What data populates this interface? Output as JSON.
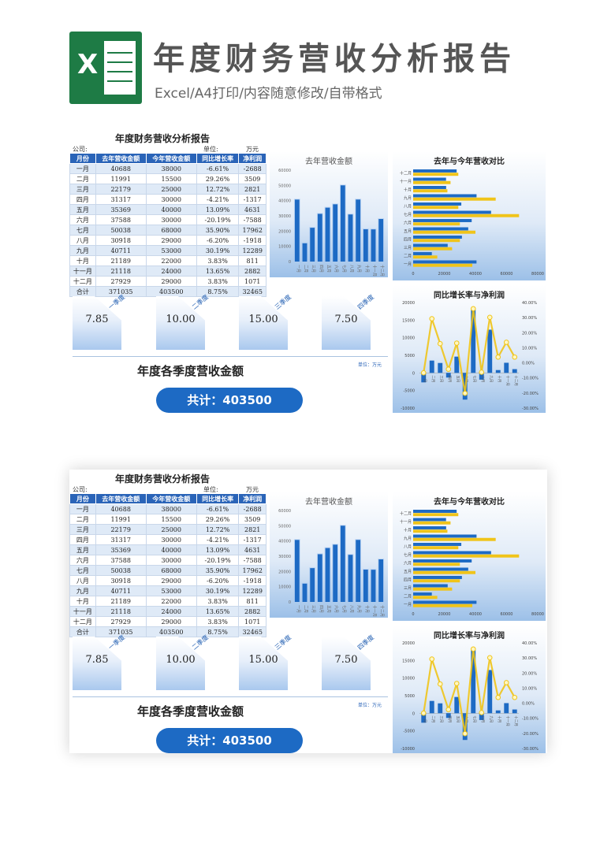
{
  "header": {
    "title": "年度财务营收分析报告",
    "subtitle": "Excel/A4打印/内容随意修改/自带格式",
    "logo_letter": "X"
  },
  "report": {
    "title": "年度财务营收分析报告",
    "company_label": "公司:",
    "unit_label": "单位:",
    "unit_value": "万元",
    "columns": [
      "月份",
      "去年营收金额",
      "今年营收金额",
      "同比增长率",
      "净利润"
    ],
    "rows": [
      [
        "一月",
        "40688",
        "38000",
        "-6.61%",
        "-2688"
      ],
      [
        "二月",
        "11991",
        "15500",
        "29.26%",
        "3509"
      ],
      [
        "三月",
        "22179",
        "25000",
        "12.72%",
        "2821"
      ],
      [
        "四月",
        "31317",
        "30000",
        "-4.21%",
        "-1317"
      ],
      [
        "五月",
        "35369",
        "40000",
        "13.09%",
        "4631"
      ],
      [
        "六月",
        "37588",
        "30000",
        "-20.19%",
        "-7588"
      ],
      [
        "七月",
        "50038",
        "68000",
        "35.90%",
        "17962"
      ],
      [
        "八月",
        "30918",
        "29000",
        "-6.20%",
        "-1918"
      ],
      [
        "九月",
        "40711",
        "53000",
        "30.19%",
        "12289"
      ],
      [
        "十月",
        "21189",
        "22000",
        "3.83%",
        "811"
      ],
      [
        "十一月",
        "21118",
        "24000",
        "13.65%",
        "2882"
      ],
      [
        "十二月",
        "27929",
        "29000",
        "3.83%",
        "1071"
      ],
      [
        "合计",
        "371035",
        "403500",
        "8.75%",
        "32465"
      ]
    ]
  },
  "quarters": {
    "items": [
      {
        "label": "一季度",
        "value": "7.85"
      },
      {
        "label": "二季度",
        "value": "10.00"
      },
      {
        "label": "三季度",
        "value": "15.00"
      },
      {
        "label": "四季度",
        "value": "7.50"
      }
    ],
    "unit_note": "单位：万元",
    "title": "年度各季度营收金额",
    "total": "共计：403500"
  },
  "chart_data": [
    {
      "type": "bar",
      "title": "去年营收金额",
      "categories": [
        "一月",
        "二月",
        "三月",
        "四月",
        "五月",
        "六月",
        "七月",
        "八月",
        "九月",
        "十月",
        "十一月",
        "十二月"
      ],
      "values": [
        40688,
        11991,
        22179,
        31317,
        35369,
        37588,
        50038,
        30918,
        40711,
        21189,
        21118,
        27929
      ],
      "ylim": [
        0,
        60000
      ],
      "yticks": [
        "0",
        "10000",
        "20000",
        "30000",
        "40000",
        "50000",
        "60000"
      ],
      "color": "#1d6ac4"
    },
    {
      "type": "bar",
      "orientation": "horizontal",
      "title": "去年与今年营收对比",
      "categories": [
        "一月",
        "二月",
        "三月",
        "四月",
        "五月",
        "六月",
        "七月",
        "八月",
        "九月",
        "十月",
        "十一月",
        "十二月"
      ],
      "series": [
        {
          "values": [
            40688,
            11991,
            22179,
            31317,
            35369,
            37588,
            50038,
            30918,
            40711,
            21189,
            21118,
            27929
          ],
          "color": "#1d6ac4"
        },
        {
          "values": [
            38000,
            15500,
            25000,
            30000,
            40000,
            30000,
            68000,
            29000,
            53000,
            22000,
            24000,
            29000
          ],
          "color": "#f0c419"
        }
      ],
      "xlim": [
        0,
        80000
      ],
      "xticks": [
        "0",
        "20000",
        "40000",
        "60000",
        "80000"
      ]
    },
    {
      "type": "bar+line",
      "title": "同比增长率与净利润",
      "categories": [
        "一月",
        "二月",
        "三月",
        "四月",
        "五月",
        "六月",
        "七月",
        "八月",
        "九月",
        "十月",
        "十一月",
        "十二月"
      ],
      "bars": {
        "values": [
          -2688,
          3509,
          2821,
          -1317,
          4631,
          -7588,
          17962,
          -1918,
          12289,
          811,
          2882,
          1071
        ],
        "color": "#1d6ac4"
      },
      "line": {
        "values": [
          -6.61,
          29.26,
          12.72,
          -4.21,
          13.09,
          -20.19,
          35.9,
          -6.2,
          30.19,
          3.83,
          13.65,
          3.83
        ],
        "color": "#f0c419"
      },
      "ylim_left": [
        -10000,
        20000
      ],
      "ylim_right": [
        -30,
        40
      ],
      "yticks_left": [
        "20000",
        "15000",
        "10000",
        "5000",
        "0",
        "-5000",
        "-10000"
      ],
      "yticks_right": [
        "40.00%",
        "30.00%",
        "20.00%",
        "10.00%",
        "0.00%",
        "-10.00%",
        "-20.00%",
        "-30.00%"
      ]
    }
  ]
}
